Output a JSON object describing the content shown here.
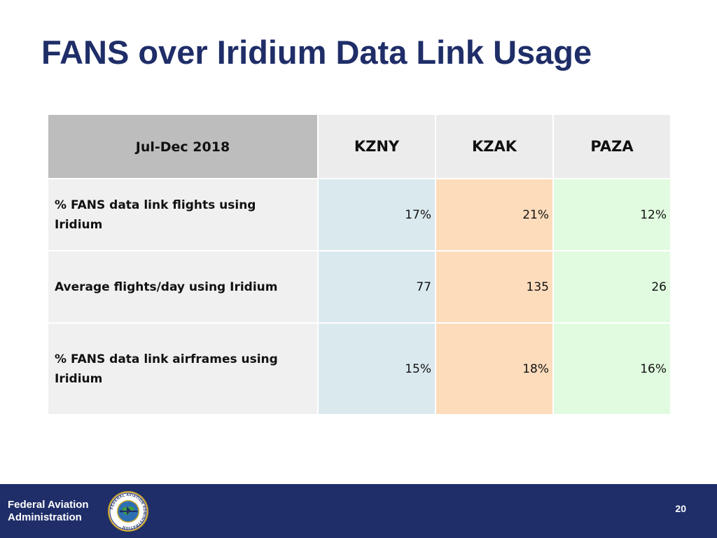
{
  "slide": {
    "title": "FANS over Iridium Data Link Usage",
    "page_number": "20"
  },
  "table": {
    "period": "Jul-Dec 2018",
    "columns": [
      "KZNY",
      "KZAK",
      "PAZA"
    ],
    "rows": [
      {
        "label": "% FANS data link flights using Iridium",
        "values": [
          "17%",
          "21%",
          "12%"
        ]
      },
      {
        "label": "Average flights/day using Iridium",
        "values": [
          "77",
          "135",
          "26"
        ]
      },
      {
        "label": "% FANS data link airframes using Iridium",
        "values": [
          "15%",
          "18%",
          "16%"
        ]
      }
    ]
  },
  "footer": {
    "agency_line1": "Federal Aviation",
    "agency_line2": "Administration",
    "seal_text": "FEDERAL AVIATION ADMINISTRATION"
  },
  "colors": {
    "title": "#1f2e68",
    "footer_bg": "#1f2e68",
    "header_period_bg": "#bdbdbd",
    "kzny_bg": "#dae9ee",
    "kzak_bg": "#fddcbc",
    "paza_bg": "#e0fbdf"
  }
}
